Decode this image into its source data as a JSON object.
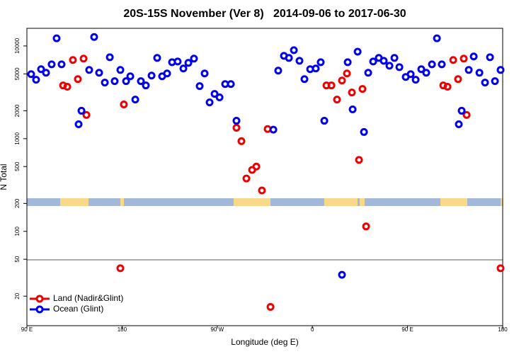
{
  "chart_data": {
    "type": "scatter",
    "title": "20S-15S November (Ver 8)   2014-09-06 to 2017-06-30",
    "x_label": "Longitude (deg E)",
    "y_label": "N Total",
    "log_y": true,
    "legend": "lower left",
    "xlim": [
      90,
      540
    ],
    "xticks": [
      {
        "value": 90,
        "label": "90 E"
      },
      {
        "value": 180,
        "label": "180"
      },
      {
        "value": 270,
        "label": "90 W"
      },
      {
        "value": 360,
        "label": "0"
      },
      {
        "value": 450,
        "label": "90 E"
      },
      {
        "value": 540,
        "label": "180"
      }
    ],
    "ylim": [
      9.6,
      15500
    ],
    "yticks": [
      20,
      50,
      100,
      200,
      500,
      1000,
      2000,
      5000,
      10000
    ],
    "series": [
      {
        "name": "Land (Nadir&Glint)",
        "color": "#ee0000",
        "x": [
          124.2,
          128.2,
          133.5,
          138.2,
          143.6,
          146.3,
          178.4,
          181.7,
          288.2,
          292.9,
          297.6,
          303.0,
          307.0,
          312.3,
          317.7,
          320.4,
          373.3,
          378.0,
          383.3,
          388.0,
          392.7,
          397.4,
          404.1,
          407.4,
          410.8,
          483.8,
          487.8,
          493.2,
          497.8,
          503.2,
          505.9,
          538.0
        ],
        "values": [
          3750,
          3630,
          7050,
          4390,
          7300,
          1800,
          40,
          2340,
          1310,
          940,
          372,
          460,
          500,
          276,
          1270,
          15.3,
          3750,
          3750,
          2640,
          4240,
          5050,
          3150,
          590,
          3440,
          113,
          3750,
          3630,
          7050,
          4390,
          7300,
          1800,
          40
        ]
      },
      {
        "name": "Ocean (Glint)",
        "color": "#0000ee",
        "x": [
          94.0,
          98.7,
          103.4,
          108.1,
          113.4,
          118.1,
          122.8,
          138.9,
          141.6,
          148.9,
          153.6,
          158.3,
          163.7,
          168.4,
          173.0,
          178.4,
          183.8,
          187.8,
          192.5,
          197.8,
          202.5,
          207.9,
          213.2,
          217.9,
          222.6,
          227.3,
          232.6,
          238.0,
          242.7,
          248.0,
          253.4,
          258.1,
          262.8,
          267.5,
          272.2,
          277.5,
          282.9,
          288.2,
          323.1,
          327.7,
          333.1,
          337.8,
          342.5,
          347.8,
          352.5,
          357.9,
          363.2,
          367.9,
          371.3,
          388.0,
          393.4,
          398.1,
          402.8,
          408.8,
          412.8,
          417.5,
          422.8,
          427.5,
          432.9,
          437.6,
          442.3,
          448.3,
          453.0,
          457.7,
          463.0,
          467.7,
          473.1,
          477.8,
          482.4,
          498.5,
          501.2,
          507.9,
          512.6,
          518.0,
          523.3,
          528.0,
          532.7,
          538.0
        ],
        "values": [
          4960,
          4320,
          5610,
          5140,
          6340,
          12100,
          6340,
          1430,
          2000,
          5510,
          12500,
          5140,
          4030,
          7560,
          4170,
          5510,
          4170,
          4710,
          2640,
          4170,
          3750,
          4790,
          7430,
          4710,
          5050,
          6680,
          6800,
          5710,
          6570,
          7300,
          3690,
          5050,
          2460,
          3040,
          2790,
          3880,
          3880,
          1560,
          1250,
          5420,
          7830,
          7430,
          9000,
          6920,
          4390,
          5610,
          5710,
          6680,
          1560,
          34,
          6680,
          2070,
          8680,
          1180,
          5140,
          6800,
          7430,
          6920,
          6120,
          7430,
          5910,
          4630,
          4960,
          4320,
          5610,
          5140,
          6340,
          12100,
          6340,
          1430,
          2000,
          5510,
          7700,
          5140,
          4030,
          7560,
          4170,
          5510
        ]
      }
    ]
  }
}
